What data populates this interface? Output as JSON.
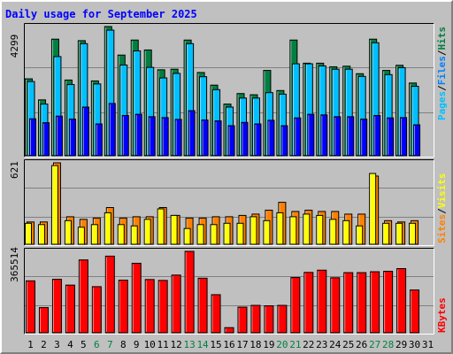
{
  "title": "Daily usage for September 2025",
  "colors": {
    "background": "#C0C0C0",
    "title": "#0000FF",
    "hits": "#008040",
    "files": "#00C0FF",
    "pages": "#00C0FF",
    "visits": "#FF8000",
    "sites": "#FFFF00",
    "kbytes": "#FF0000",
    "weekend_day": "#008040"
  },
  "chart_data": [
    {
      "type": "bar",
      "panel": "hits-files-pages",
      "y_max_label": "4299",
      "ymax": 4299,
      "legend": {
        "pages": "Pages",
        "files": "Files",
        "hits": "Hits",
        "sep": "/"
      },
      "categories": [
        "1",
        "2",
        "3",
        "4",
        "5",
        "6",
        "7",
        "8",
        "9",
        "10",
        "11",
        "12",
        "13",
        "14",
        "15",
        "16",
        "17",
        "18",
        "19",
        "20",
        "21",
        "22",
        "23",
        "24",
        "25",
        "26",
        "27",
        "28",
        "29",
        "30",
        "31"
      ],
      "series": [
        {
          "name": "Hits",
          "values": [
            2560,
            1860,
            3880,
            2520,
            3830,
            2490,
            4299,
            3350,
            3850,
            3520,
            2860,
            2880,
            3850,
            2770,
            2350,
            1720,
            2070,
            2030,
            2840,
            2170,
            3850,
            3080,
            3080,
            2960,
            2980,
            2730,
            3880,
            2840,
            3010,
            2420,
            0
          ]
        },
        {
          "name": "Files",
          "values": [
            2470,
            1720,
            3300,
            2370,
            3730,
            2390,
            4180,
            3020,
            3490,
            2940,
            2590,
            2740,
            3730,
            2630,
            2200,
            1620,
            1920,
            1920,
            2100,
            2050,
            3060,
            3060,
            2990,
            2880,
            2880,
            2640,
            3760,
            2700,
            2930,
            2310,
            0
          ]
        },
        {
          "name": "Pages",
          "values": [
            1230,
            1100,
            1320,
            1220,
            1620,
            1060,
            1740,
            1340,
            1380,
            1300,
            1270,
            1210,
            1500,
            1190,
            1160,
            1000,
            1110,
            1060,
            1180,
            1000,
            1260,
            1380,
            1360,
            1300,
            1300,
            1220,
            1340,
            1260,
            1270,
            1030,
            0
          ]
        }
      ],
      "weekend_days": [
        "6",
        "7",
        "13",
        "14",
        "20",
        "21",
        "27",
        "28"
      ]
    },
    {
      "type": "bar",
      "panel": "visits-sites",
      "y_max_label": "621",
      "ymax": 621,
      "legend": {
        "sites": "Sites",
        "visits": "Visits",
        "sep": "/"
      },
      "categories": [
        "1",
        "2",
        "3",
        "4",
        "5",
        "6",
        "7",
        "8",
        "9",
        "10",
        "11",
        "12",
        "13",
        "14",
        "15",
        "16",
        "17",
        "18",
        "19",
        "20",
        "21",
        "22",
        "23",
        "24",
        "25",
        "26",
        "27",
        "28",
        "29",
        "30",
        "31"
      ],
      "series": [
        {
          "name": "Visits",
          "values": [
            170,
            170,
            621,
            210,
            190,
            200,
            280,
            200,
            210,
            210,
            280,
            220,
            200,
            200,
            210,
            210,
            220,
            230,
            260,
            320,
            250,
            260,
            250,
            250,
            230,
            230,
            520,
            180,
            170,
            180,
            0
          ]
        },
        {
          "name": "Sites",
          "values": [
            160,
            150,
            600,
            180,
            130,
            150,
            240,
            150,
            140,
            190,
            270,
            220,
            120,
            150,
            150,
            160,
            160,
            210,
            180,
            240,
            210,
            230,
            220,
            190,
            180,
            140,
            540,
            160,
            160,
            160,
            0
          ]
        }
      ]
    },
    {
      "type": "bar",
      "panel": "kbytes",
      "y_max_label": "365514",
      "ymax": 365514,
      "legend": {
        "kbytes": "KBytes"
      },
      "categories": [
        "1",
        "2",
        "3",
        "4",
        "5",
        "6",
        "7",
        "8",
        "9",
        "10",
        "11",
        "12",
        "13",
        "14",
        "15",
        "16",
        "17",
        "18",
        "19",
        "20",
        "21",
        "22",
        "23",
        "24",
        "25",
        "26",
        "27",
        "28",
        "29",
        "30",
        "31"
      ],
      "series": [
        {
          "name": "KBytes",
          "values": [
            233000,
            113000,
            240000,
            214000,
            327000,
            207000,
            344000,
            236000,
            312000,
            239000,
            235000,
            259000,
            365514,
            245000,
            171000,
            23000,
            115000,
            123000,
            121000,
            123000,
            248000,
            271000,
            281000,
            247000,
            270000,
            270000,
            274000,
            276000,
            288000,
            192000,
            0
          ]
        }
      ]
    }
  ]
}
